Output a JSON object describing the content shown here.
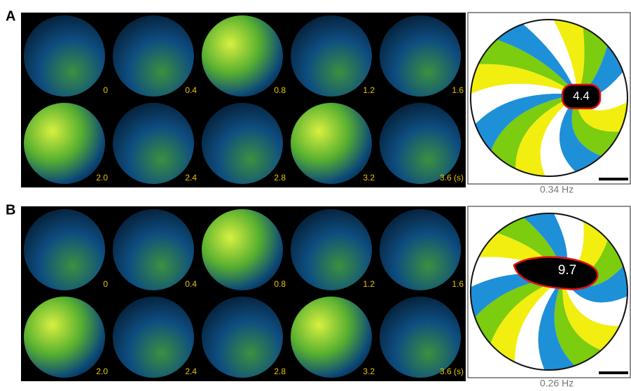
{
  "panels": [
    {
      "label": "A",
      "time_labels": [
        "0",
        "0.4",
        "0.8",
        "1.2",
        "1.6",
        "2.0",
        "2.4",
        "2.8",
        "3.2",
        "3.6 (s)"
      ],
      "core_value": "4.4",
      "frequency": "0.34 Hz"
    },
    {
      "label": "B",
      "time_labels": [
        "0",
        "0.4",
        "0.8",
        "1.2",
        "1.6",
        "2.0",
        "2.4",
        "2.8",
        "3.2",
        "3.6 (s)"
      ],
      "core_value": "9.7",
      "frequency": "0.26 Hz"
    }
  ]
}
